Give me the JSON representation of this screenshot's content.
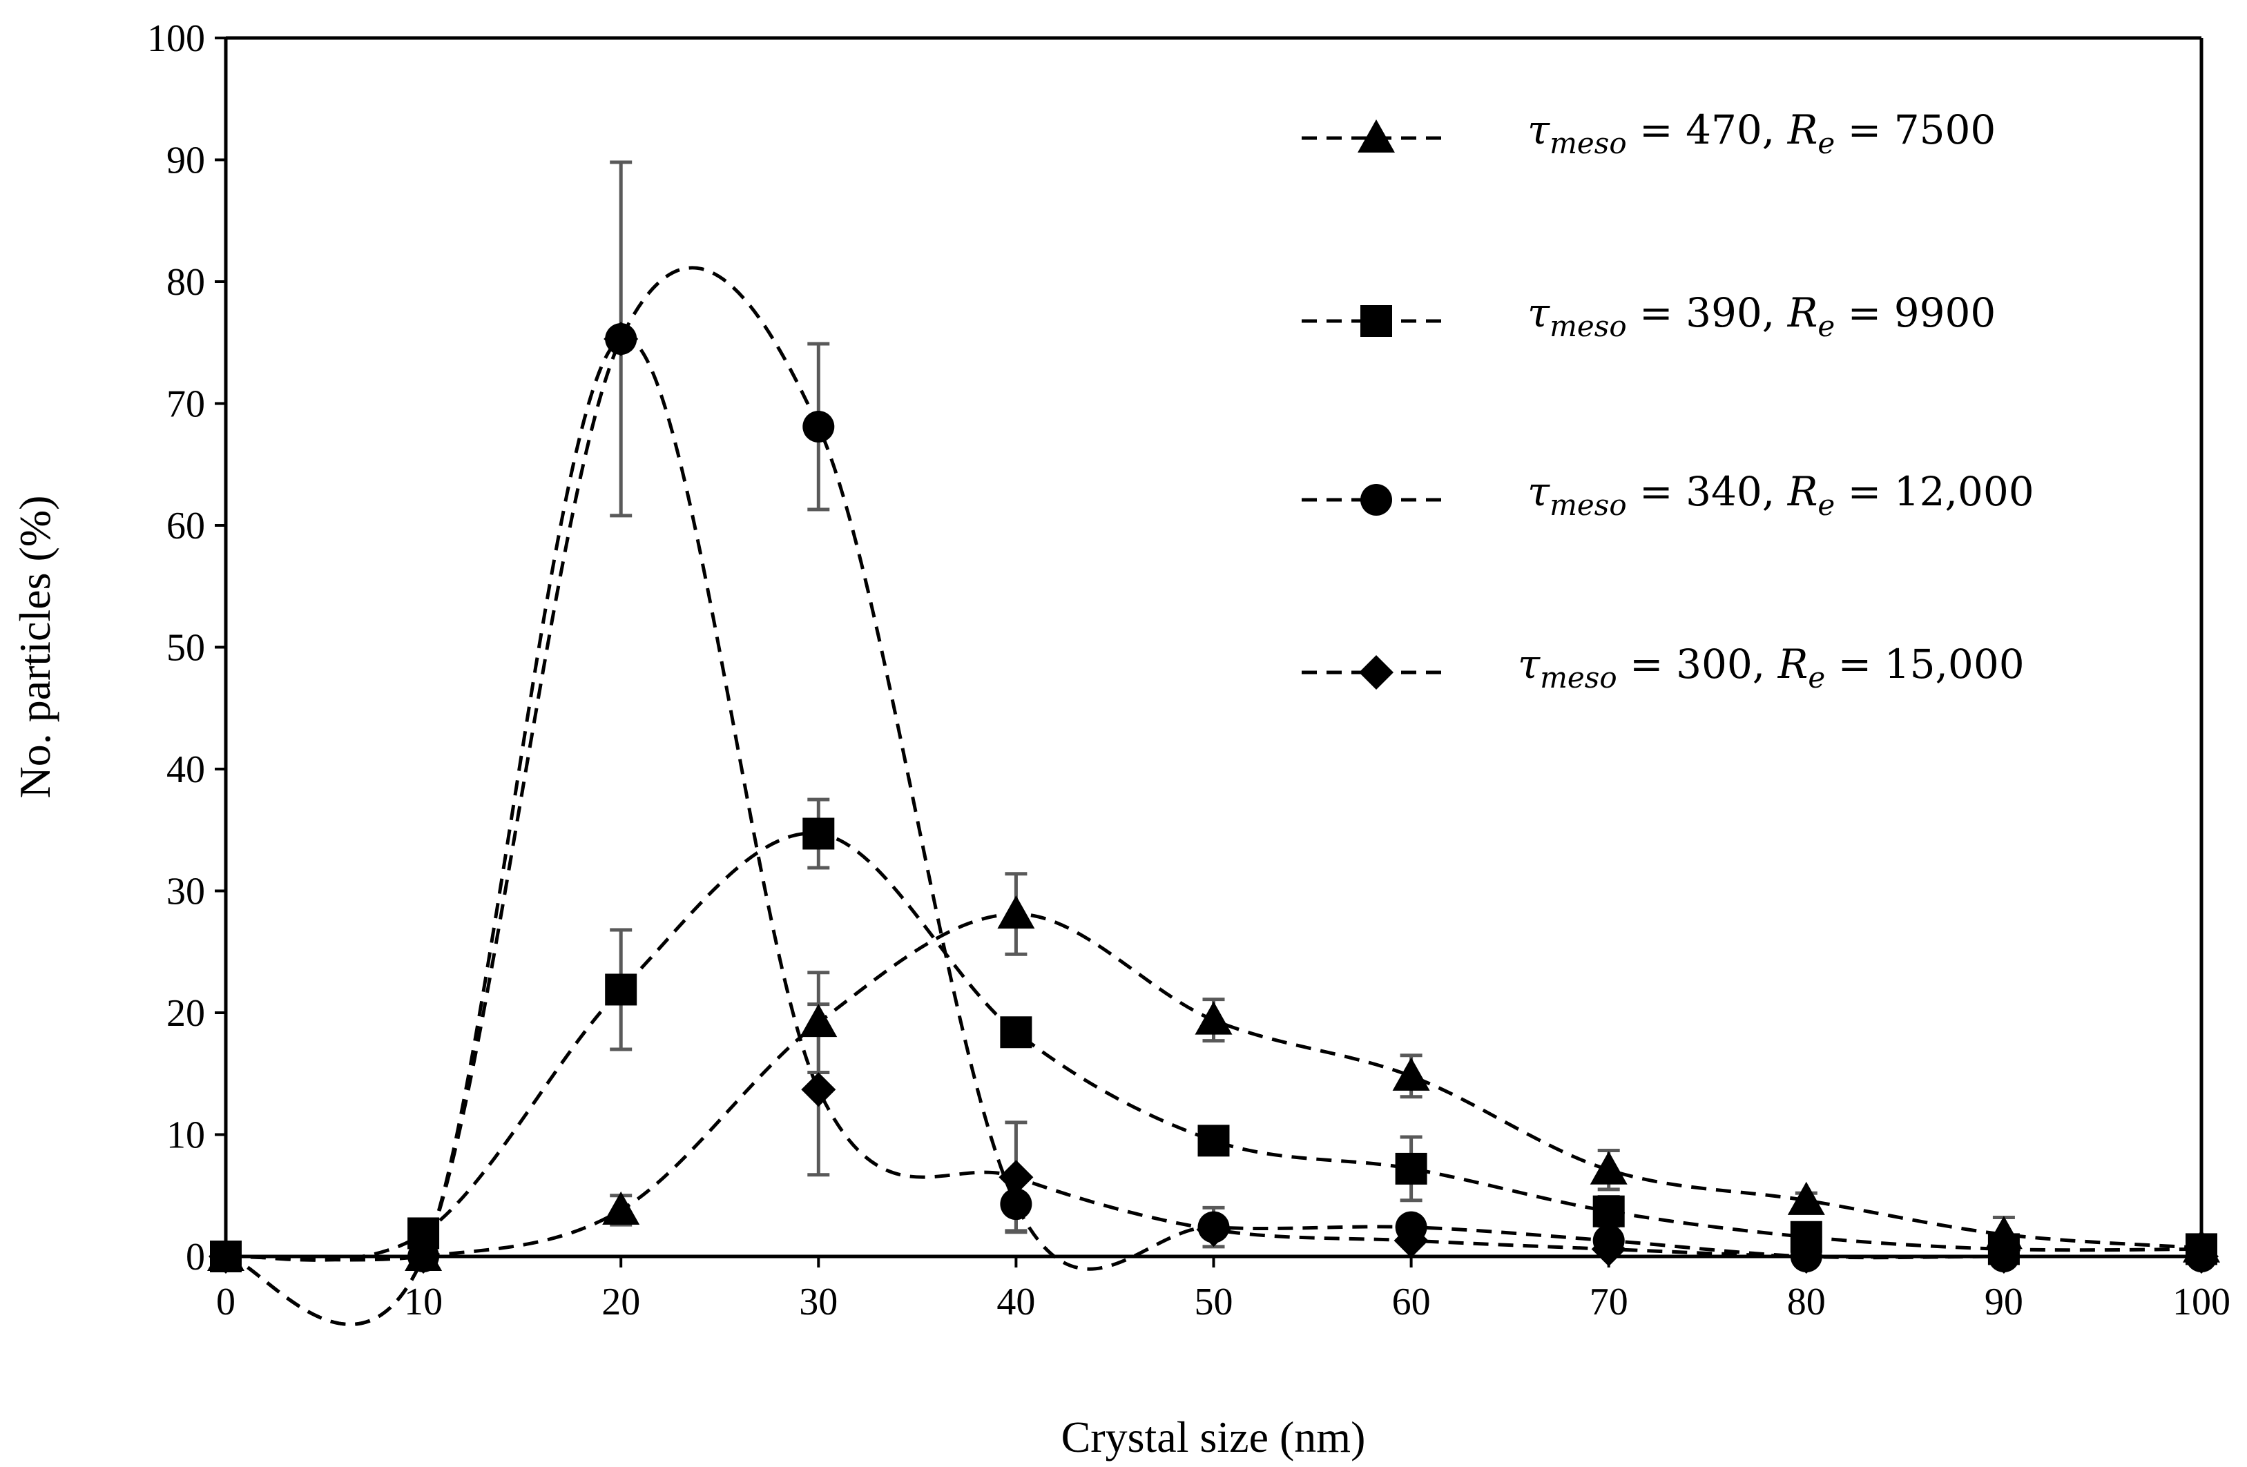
{
  "chart_data": {
    "type": "line",
    "title": "",
    "xlabel": "Crystal size (nm)",
    "ylabel": "No. particles (%)",
    "xlim": [
      0,
      100
    ],
    "ylim": [
      0,
      100
    ],
    "x_ticks": [
      "0",
      "10",
      "20",
      "30",
      "40",
      "50",
      "60",
      "70",
      "80",
      "90",
      "100"
    ],
    "y_ticks": [
      "0",
      "10",
      "20",
      "30",
      "40",
      "50",
      "60",
      "70",
      "80",
      "90",
      "100"
    ],
    "grid": false,
    "legend_position": "top-right",
    "series": [
      {
        "id": "s470",
        "marker": "triangle",
        "legend": {
          "tau_symbol": "τ",
          "tau_sub": "meso",
          "eq1": " = 470, ",
          "re_symbol": "R",
          "re_sub": "e",
          "eq2": " = 7500"
        },
        "x": [
          0,
          10,
          20,
          30,
          40,
          50,
          60,
          70,
          80,
          90,
          100
        ],
        "y": [
          0,
          0,
          3.8,
          19.2,
          28.1,
          19.4,
          14.8,
          7.1,
          4.6,
          1.8,
          0.7
        ],
        "error": [
          0,
          0,
          1.2,
          4.1,
          3.3,
          1.7,
          1.7,
          1.6,
          0.6,
          1.4,
          0
        ]
      },
      {
        "id": "s390",
        "marker": "square",
        "legend": {
          "tau_symbol": "τ",
          "tau_sub": "meso",
          "eq1": " = 390, ",
          "re_symbol": "R",
          "re_sub": "e",
          "eq2": " = 9900"
        },
        "x": [
          0,
          10,
          20,
          30,
          40,
          50,
          60,
          70,
          80,
          90,
          100
        ],
        "y": [
          0,
          1.9,
          21.9,
          34.7,
          18.4,
          9.5,
          7.2,
          3.7,
          1.6,
          0.6,
          0.6
        ],
        "error": [
          0,
          0,
          4.9,
          2.8,
          0,
          0,
          2.6,
          1.2,
          0,
          0,
          0
        ]
      },
      {
        "id": "s340",
        "marker": "circle",
        "legend": {
          "tau_symbol": "τ",
          "tau_sub": "meso",
          "eq1": " = 340, ",
          "re_symbol": "R",
          "re_sub": "e",
          "eq2": " = 12,000"
        },
        "x": [
          0,
          10,
          20,
          30,
          40,
          50,
          60,
          70,
          80,
          90,
          100
        ],
        "y": [
          0,
          0,
          75.3,
          68.1,
          4.3,
          2.4,
          2.4,
          1.3,
          0,
          0,
          0
        ],
        "error": [
          0,
          0,
          14.5,
          6.8,
          2.2,
          1.6,
          0,
          0,
          0,
          0,
          0
        ]
      },
      {
        "id": "s300",
        "marker": "diamond",
        "legend": {
          "tau_symbol": "τ",
          "tau_sub": "meso",
          "eq1": " = 300, ",
          "re_symbol": "R",
          "re_sub": "e",
          "eq2": " = 15,000"
        },
        "x": [
          0,
          10,
          20,
          30,
          40,
          50,
          60,
          70,
          80,
          90,
          100
        ],
        "y": [
          0,
          0,
          75.3,
          13.7,
          6.5,
          2.2,
          1.3,
          0.6,
          0,
          0,
          0
        ],
        "error": [
          0,
          0,
          0,
          7.0,
          4.5,
          0,
          0,
          0,
          0,
          0,
          0
        ]
      }
    ]
  }
}
